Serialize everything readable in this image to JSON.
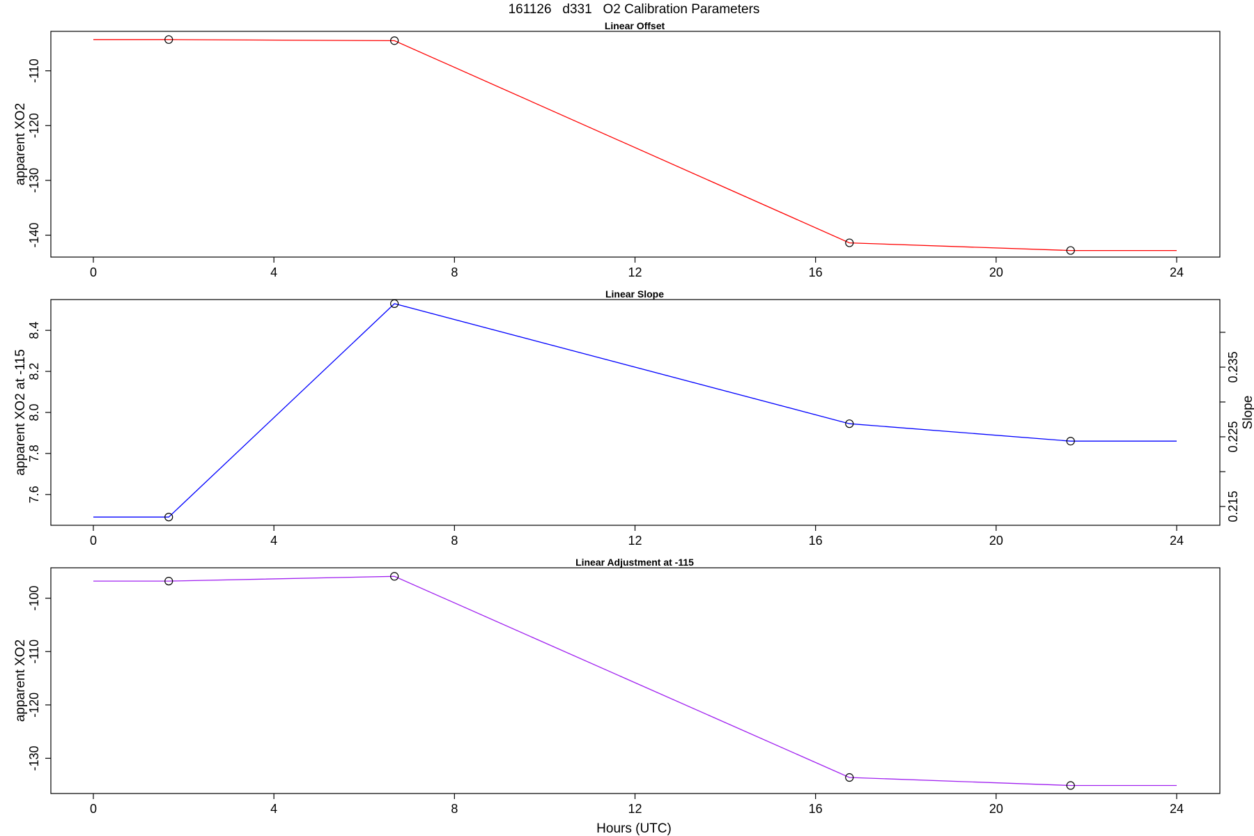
{
  "main_title": "161126   d331   O2 Calibration Parameters",
  "x_axis_label": "Hours (UTC)",
  "colors": {
    "offset": "#ff0000",
    "slope": "#0000ff",
    "adjustment": "#a020f0",
    "markers": "#000000"
  },
  "chart_data": [
    {
      "type": "line",
      "title": "Linear Offset",
      "xlabel": "",
      "ylabel": "apparent XO2",
      "xlim": [
        0,
        24
      ],
      "ylim": [
        -144,
        -102.8
      ],
      "x_ticks": [
        "0",
        "4",
        "8",
        "12",
        "16",
        "20",
        "24"
      ],
      "y_ticks": [
        "-110",
        "-120",
        "-130",
        "-140"
      ],
      "grid": false,
      "series": [
        {
          "x": [
            0,
            1.67,
            6.67,
            16.75,
            21.65,
            24
          ],
          "y": [
            -104.3,
            -104.3,
            -104.5,
            -141.4,
            -142.8,
            -142.8
          ]
        }
      ],
      "markers": {
        "x": [
          1.67,
          6.67,
          16.75,
          21.65
        ],
        "y": [
          -104.3,
          -104.5,
          -141.4,
          -142.8
        ]
      }
    },
    {
      "type": "line",
      "title": "Linear Slope",
      "xlabel": "",
      "ylabel": "apparent XO2 at -115",
      "ylabel_right": "Slope",
      "xlim": [
        0,
        24
      ],
      "ylim": [
        7.45,
        8.55
      ],
      "y_ticks": [
        "7.6",
        "7.8",
        "8.0",
        "8.2",
        "8.4"
      ],
      "y_ticks_right": [
        "0.215",
        "0.225",
        "0.235"
      ],
      "grid": false,
      "series": [
        {
          "x": [
            0,
            1.67,
            6.67,
            16.75,
            21.65,
            24
          ],
          "y": [
            7.49,
            7.49,
            8.53,
            7.945,
            7.86,
            7.86
          ]
        }
      ],
      "markers": {
        "x": [
          1.67,
          6.67,
          16.75,
          21.65
        ],
        "y": [
          7.49,
          8.53,
          7.945,
          7.86
        ]
      }
    },
    {
      "type": "line",
      "title": "Linear Adjustment at -115",
      "xlabel": "Hours (UTC)",
      "ylabel": "apparent XO2",
      "xlim": [
        0,
        24
      ],
      "ylim": [
        -136.6,
        -94.3
      ],
      "y_ticks": [
        "-100",
        "-110",
        "-120",
        "-130"
      ],
      "grid": false,
      "series": [
        {
          "x": [
            0,
            1.67,
            6.67,
            16.75,
            21.65,
            24
          ],
          "y": [
            -96.8,
            -96.8,
            -95.9,
            -133.6,
            -135.1,
            -135.1
          ]
        }
      ],
      "markers": {
        "x": [
          1.67,
          6.67,
          16.75,
          21.65
        ],
        "y": [
          -96.8,
          -95.9,
          -133.6,
          -135.1
        ]
      }
    }
  ]
}
